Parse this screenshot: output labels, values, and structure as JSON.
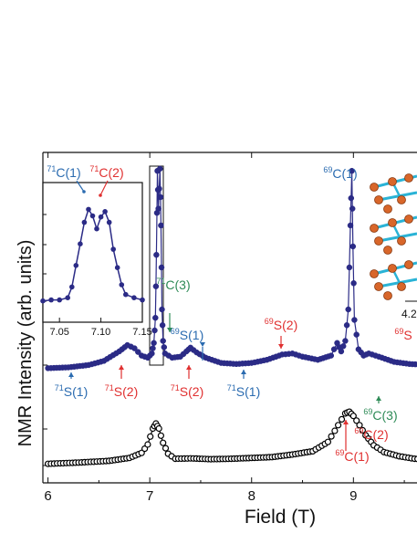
{
  "chart_data": {
    "type": "scatter",
    "xlabel": "Field (T)",
    "ylabel": "NMR Intensity (arb. units)",
    "xlim": [
      5.95,
      9.75
    ],
    "x_ticks": [
      "6",
      "7",
      "8",
      "9"
    ],
    "grid": false,
    "series": [
      {
        "color": "#2b2b86",
        "marker": "filled-circle",
        "points": [
          [
            6.0,
            0.02
          ],
          [
            6.2,
            0.024
          ],
          [
            6.4,
            0.035
          ],
          [
            6.55,
            0.055
          ],
          [
            6.7,
            0.1
          ],
          [
            6.78,
            0.13
          ],
          [
            6.85,
            0.115
          ],
          [
            6.92,
            0.08
          ],
          [
            6.98,
            0.07
          ],
          [
            7.02,
            0.09
          ],
          [
            7.04,
            0.14
          ],
          [
            7.055,
            0.26
          ],
          [
            7.065,
            0.56
          ],
          [
            7.075,
            0.96
          ],
          [
            7.085,
            0.78
          ],
          [
            7.1,
            0.97
          ],
          [
            7.11,
            0.7
          ],
          [
            7.12,
            0.3
          ],
          [
            7.13,
            0.15
          ],
          [
            7.15,
            0.09
          ],
          [
            7.22,
            0.07
          ],
          [
            7.3,
            0.075
          ],
          [
            7.36,
            0.1
          ],
          [
            7.4,
            0.118
          ],
          [
            7.46,
            0.095
          ],
          [
            7.55,
            0.07
          ],
          [
            7.7,
            0.045
          ],
          [
            7.85,
            0.04
          ],
          [
            8.0,
            0.045
          ],
          [
            8.15,
            0.06
          ],
          [
            8.3,
            0.085
          ],
          [
            8.4,
            0.09
          ],
          [
            8.5,
            0.075
          ],
          [
            8.65,
            0.06
          ],
          [
            8.78,
            0.08
          ],
          [
            8.84,
            0.14
          ],
          [
            8.88,
            0.1
          ],
          [
            8.92,
            0.15
          ],
          [
            8.95,
            0.3
          ],
          [
            8.97,
            0.7
          ],
          [
            8.985,
            0.96
          ],
          [
            8.995,
            0.6
          ],
          [
            9.01,
            0.25
          ],
          [
            9.05,
            0.11
          ],
          [
            9.1,
            0.08
          ],
          [
            9.15,
            0.09
          ],
          [
            9.25,
            0.075
          ],
          [
            9.4,
            0.05
          ],
          [
            9.55,
            0.04
          ],
          [
            9.75,
            0.035
          ]
        ]
      },
      {
        "color": "#000000",
        "marker": "open-circle",
        "points": [
          [
            6.0,
            0.02
          ],
          [
            6.3,
            0.035
          ],
          [
            6.6,
            0.055
          ],
          [
            6.8,
            0.09
          ],
          [
            6.92,
            0.15
          ],
          [
            6.98,
            0.25
          ],
          [
            7.03,
            0.44
          ],
          [
            7.06,
            0.5
          ],
          [
            7.09,
            0.44
          ],
          [
            7.13,
            0.27
          ],
          [
            7.18,
            0.14
          ],
          [
            7.25,
            0.08
          ],
          [
            7.4,
            0.085
          ],
          [
            7.6,
            0.075
          ],
          [
            7.8,
            0.08
          ],
          [
            8.0,
            0.09
          ],
          [
            8.2,
            0.1
          ],
          [
            8.4,
            0.13
          ],
          [
            8.6,
            0.17
          ],
          [
            8.75,
            0.28
          ],
          [
            8.85,
            0.48
          ],
          [
            8.92,
            0.62
          ],
          [
            8.96,
            0.64
          ],
          [
            9.0,
            0.59
          ],
          [
            9.06,
            0.48
          ],
          [
            9.12,
            0.36
          ],
          [
            9.2,
            0.24
          ],
          [
            9.3,
            0.16
          ],
          [
            9.45,
            0.11
          ],
          [
            9.6,
            0.08
          ],
          [
            9.75,
            0.07
          ]
        ]
      }
    ],
    "annotations": [
      {
        "iso": "71",
        "site": "S(1)",
        "x": 6.25,
        "color": "#2a6bb0"
      },
      {
        "iso": "71",
        "site": "S(2)",
        "x": 6.78,
        "color": "#e03030"
      },
      {
        "iso": "71",
        "site": "C(3)",
        "x": 7.2,
        "color": "#2e8b57"
      },
      {
        "iso": "69",
        "site": "S(1)",
        "x": 7.55,
        "color": "#2a6bb0"
      },
      {
        "iso": "71",
        "site": "S(2)",
        "x": 7.38,
        "color": "#e03030"
      },
      {
        "iso": "71",
        "site": "S(1)",
        "x": 7.95,
        "color": "#2a6bb0"
      },
      {
        "iso": "69",
        "site": "S(2)",
        "x": 8.3,
        "color": "#e03030"
      },
      {
        "iso": "69",
        "site": "C(1)",
        "x": 8.98,
        "color": "#2a6bb0"
      },
      {
        "iso": "69",
        "site": "C(3)",
        "x": 9.25,
        "color": "#2e8b57"
      },
      {
        "iso": "69",
        "site": "C(2)",
        "x": 9.05,
        "color": "#e03030"
      },
      {
        "iso": "69",
        "site": "C(1)",
        "x": 8.98,
        "color": "#e03030"
      },
      {
        "iso": "69",
        "site": "S",
        "x": 9.7,
        "color": "#e03030"
      }
    ],
    "inset": {
      "xlim": [
        7.03,
        7.15
      ],
      "x_ticks": [
        "7.05",
        "7.10",
        "7.15"
      ],
      "labels": [
        {
          "iso": "71",
          "site": "C(1)",
          "color": "#2a6bb0"
        },
        {
          "iso": "71",
          "site": "C(2)",
          "color": "#e03030"
        }
      ],
      "points": [
        [
          7.03,
          0.07
        ],
        [
          7.04,
          0.08
        ],
        [
          7.05,
          0.08
        ],
        [
          7.06,
          0.1
        ],
        [
          7.065,
          0.2
        ],
        [
          7.07,
          0.4
        ],
        [
          7.075,
          0.6
        ],
        [
          7.08,
          0.8
        ],
        [
          7.085,
          0.92
        ],
        [
          7.09,
          0.86
        ],
        [
          7.095,
          0.74
        ],
        [
          7.1,
          0.85
        ],
        [
          7.105,
          0.9
        ],
        [
          7.11,
          0.8
        ],
        [
          7.115,
          0.55
        ],
        [
          7.12,
          0.38
        ],
        [
          7.125,
          0.22
        ],
        [
          7.13,
          0.13
        ],
        [
          7.14,
          0.1
        ],
        [
          7.15,
          0.08
        ]
      ]
    },
    "structure_inset": {
      "scale_label": "4.2"
    }
  }
}
